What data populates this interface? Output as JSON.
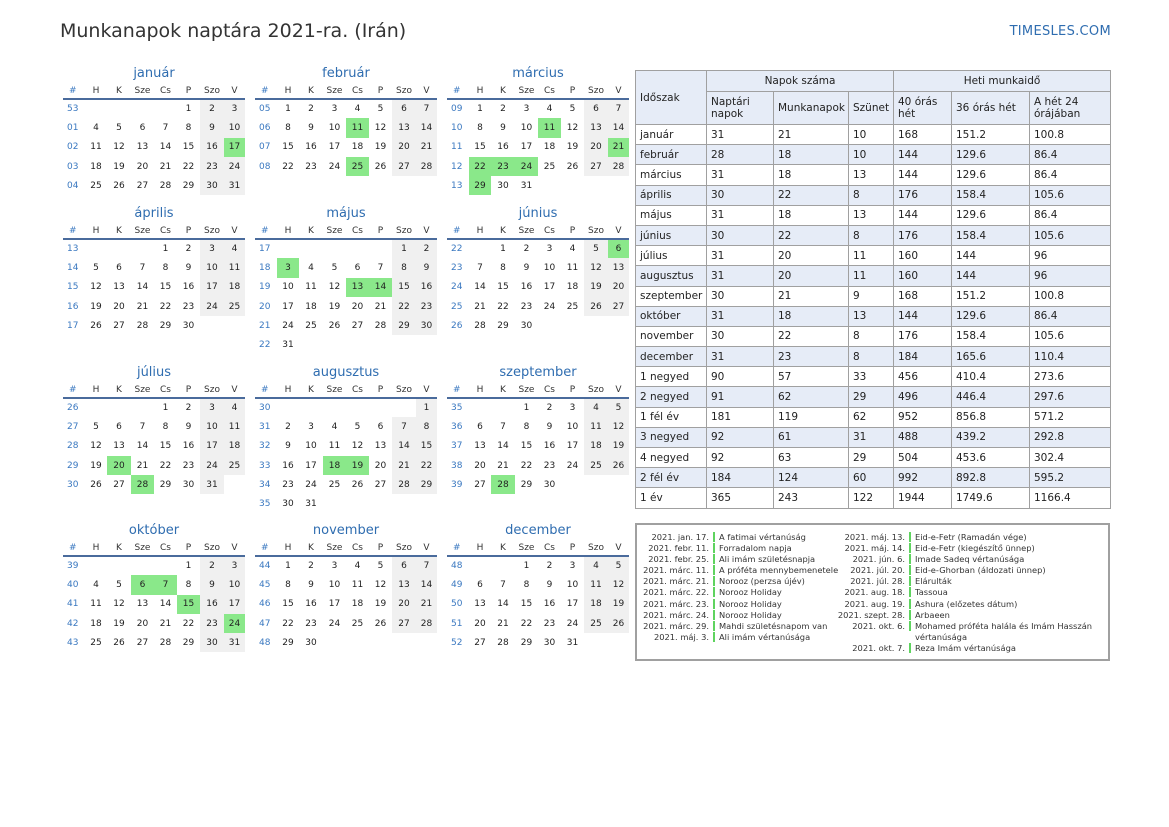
{
  "title": "Munkanapok naptára 2021-ra. (Irán)",
  "brand": "TIMESLES.COM",
  "day_headers": [
    "#",
    "H",
    "K",
    "Sze",
    "Cs",
    "P",
    "Szo",
    "V"
  ],
  "months": [
    {
      "name": "január",
      "weeks": [
        {
          "wk": "53",
          "days": [
            "",
            "",
            "",
            "",
            "1",
            "2",
            "3"
          ]
        },
        {
          "wk": "01",
          "days": [
            "4",
            "5",
            "6",
            "7",
            "8",
            "9",
            "10"
          ]
        },
        {
          "wk": "02",
          "days": [
            "11",
            "12",
            "13",
            "14",
            "15",
            "16",
            "17"
          ]
        },
        {
          "wk": "03",
          "days": [
            "18",
            "19",
            "20",
            "21",
            "22",
            "23",
            "24"
          ]
        },
        {
          "wk": "04",
          "days": [
            "25",
            "26",
            "27",
            "28",
            "29",
            "30",
            "31"
          ]
        }
      ],
      "holidays": [
        "17"
      ]
    },
    {
      "name": "február",
      "weeks": [
        {
          "wk": "05",
          "days": [
            "1",
            "2",
            "3",
            "4",
            "5",
            "6",
            "7"
          ]
        },
        {
          "wk": "06",
          "days": [
            "8",
            "9",
            "10",
            "11",
            "12",
            "13",
            "14"
          ]
        },
        {
          "wk": "07",
          "days": [
            "15",
            "16",
            "17",
            "18",
            "19",
            "20",
            "21"
          ]
        },
        {
          "wk": "08",
          "days": [
            "22",
            "23",
            "24",
            "25",
            "26",
            "27",
            "28"
          ]
        }
      ],
      "holidays": [
        "11",
        "25"
      ]
    },
    {
      "name": "március",
      "weeks": [
        {
          "wk": "09",
          "days": [
            "1",
            "2",
            "3",
            "4",
            "5",
            "6",
            "7"
          ]
        },
        {
          "wk": "10",
          "days": [
            "8",
            "9",
            "10",
            "11",
            "12",
            "13",
            "14"
          ]
        },
        {
          "wk": "11",
          "days": [
            "15",
            "16",
            "17",
            "18",
            "19",
            "20",
            "21"
          ]
        },
        {
          "wk": "12",
          "days": [
            "22",
            "23",
            "24",
            "25",
            "26",
            "27",
            "28"
          ]
        },
        {
          "wk": "13",
          "days": [
            "29",
            "30",
            "31",
            "",
            "",
            "",
            ""
          ]
        }
      ],
      "holidays": [
        "11",
        "21",
        "22",
        "23",
        "24",
        "29"
      ]
    },
    {
      "name": "április",
      "weeks": [
        {
          "wk": "13",
          "days": [
            "",
            "",
            "",
            "1",
            "2",
            "3",
            "4"
          ]
        },
        {
          "wk": "14",
          "days": [
            "5",
            "6",
            "7",
            "8",
            "9",
            "10",
            "11"
          ]
        },
        {
          "wk": "15",
          "days": [
            "12",
            "13",
            "14",
            "15",
            "16",
            "17",
            "18"
          ]
        },
        {
          "wk": "16",
          "days": [
            "19",
            "20",
            "21",
            "22",
            "23",
            "24",
            "25"
          ]
        },
        {
          "wk": "17",
          "days": [
            "26",
            "27",
            "28",
            "29",
            "30",
            "",
            ""
          ]
        }
      ],
      "holidays": []
    },
    {
      "name": "május",
      "weeks": [
        {
          "wk": "17",
          "days": [
            "",
            "",
            "",
            "",
            "",
            "1",
            "2"
          ]
        },
        {
          "wk": "18",
          "days": [
            "3",
            "4",
            "5",
            "6",
            "7",
            "8",
            "9"
          ]
        },
        {
          "wk": "19",
          "days": [
            "10",
            "11",
            "12",
            "13",
            "14",
            "15",
            "16"
          ]
        },
        {
          "wk": "20",
          "days": [
            "17",
            "18",
            "19",
            "20",
            "21",
            "22",
            "23"
          ]
        },
        {
          "wk": "21",
          "days": [
            "24",
            "25",
            "26",
            "27",
            "28",
            "29",
            "30"
          ]
        },
        {
          "wk": "22",
          "days": [
            "31",
            "",
            "",
            "",
            "",
            "",
            ""
          ]
        }
      ],
      "holidays": [
        "3",
        "13",
        "14"
      ]
    },
    {
      "name": "június",
      "weeks": [
        {
          "wk": "22",
          "days": [
            "",
            "1",
            "2",
            "3",
            "4",
            "5",
            "6"
          ]
        },
        {
          "wk": "23",
          "days": [
            "7",
            "8",
            "9",
            "10",
            "11",
            "12",
            "13"
          ]
        },
        {
          "wk": "24",
          "days": [
            "14",
            "15",
            "16",
            "17",
            "18",
            "19",
            "20"
          ]
        },
        {
          "wk": "25",
          "days": [
            "21",
            "22",
            "23",
            "24",
            "25",
            "26",
            "27"
          ]
        },
        {
          "wk": "26",
          "days": [
            "28",
            "29",
            "30",
            "",
            "",
            "",
            ""
          ]
        }
      ],
      "holidays": [
        "6"
      ]
    },
    {
      "name": "július",
      "weeks": [
        {
          "wk": "26",
          "days": [
            "",
            "",
            "",
            "1",
            "2",
            "3",
            "4"
          ]
        },
        {
          "wk": "27",
          "days": [
            "5",
            "6",
            "7",
            "8",
            "9",
            "10",
            "11"
          ]
        },
        {
          "wk": "28",
          "days": [
            "12",
            "13",
            "14",
            "15",
            "16",
            "17",
            "18"
          ]
        },
        {
          "wk": "29",
          "days": [
            "19",
            "20",
            "21",
            "22",
            "23",
            "24",
            "25"
          ]
        },
        {
          "wk": "30",
          "days": [
            "26",
            "27",
            "28",
            "29",
            "30",
            "31",
            ""
          ]
        }
      ],
      "holidays": [
        "20",
        "28"
      ]
    },
    {
      "name": "augusztus",
      "weeks": [
        {
          "wk": "30",
          "days": [
            "",
            "",
            "",
            "",
            "",
            "",
            "1"
          ]
        },
        {
          "wk": "31",
          "days": [
            "2",
            "3",
            "4",
            "5",
            "6",
            "7",
            "8"
          ]
        },
        {
          "wk": "32",
          "days": [
            "9",
            "10",
            "11",
            "12",
            "13",
            "14",
            "15"
          ]
        },
        {
          "wk": "33",
          "days": [
            "16",
            "17",
            "18",
            "19",
            "20",
            "21",
            "22"
          ]
        },
        {
          "wk": "34",
          "days": [
            "23",
            "24",
            "25",
            "26",
            "27",
            "28",
            "29"
          ]
        },
        {
          "wk": "35",
          "days": [
            "30",
            "31",
            "",
            "",
            "",
            "",
            ""
          ]
        }
      ],
      "holidays": [
        "18",
        "19"
      ]
    },
    {
      "name": "szeptember",
      "weeks": [
        {
          "wk": "35",
          "days": [
            "",
            "",
            "1",
            "2",
            "3",
            "4",
            "5"
          ]
        },
        {
          "wk": "36",
          "days": [
            "6",
            "7",
            "8",
            "9",
            "10",
            "11",
            "12"
          ]
        },
        {
          "wk": "37",
          "days": [
            "13",
            "14",
            "15",
            "16",
            "17",
            "18",
            "19"
          ]
        },
        {
          "wk": "38",
          "days": [
            "20",
            "21",
            "22",
            "23",
            "24",
            "25",
            "26"
          ]
        },
        {
          "wk": "39",
          "days": [
            "27",
            "28",
            "29",
            "30",
            "",
            "",
            ""
          ]
        }
      ],
      "holidays": [
        "28"
      ]
    },
    {
      "name": "október",
      "weeks": [
        {
          "wk": "39",
          "days": [
            "",
            "",
            "",
            "",
            "1",
            "2",
            "3"
          ]
        },
        {
          "wk": "40",
          "days": [
            "4",
            "5",
            "6",
            "7",
            "8",
            "9",
            "10"
          ]
        },
        {
          "wk": "41",
          "days": [
            "11",
            "12",
            "13",
            "14",
            "15",
            "16",
            "17"
          ]
        },
        {
          "wk": "42",
          "days": [
            "18",
            "19",
            "20",
            "21",
            "22",
            "23",
            "24"
          ]
        },
        {
          "wk": "43",
          "days": [
            "25",
            "26",
            "27",
            "28",
            "29",
            "30",
            "31"
          ]
        }
      ],
      "holidays": [
        "6",
        "7",
        "15",
        "24"
      ]
    },
    {
      "name": "november",
      "weeks": [
        {
          "wk": "44",
          "days": [
            "1",
            "2",
            "3",
            "4",
            "5",
            "6",
            "7"
          ]
        },
        {
          "wk": "45",
          "days": [
            "8",
            "9",
            "10",
            "11",
            "12",
            "13",
            "14"
          ]
        },
        {
          "wk": "46",
          "days": [
            "15",
            "16",
            "17",
            "18",
            "19",
            "20",
            "21"
          ]
        },
        {
          "wk": "47",
          "days": [
            "22",
            "23",
            "24",
            "25",
            "26",
            "27",
            "28"
          ]
        },
        {
          "wk": "48",
          "days": [
            "29",
            "30",
            "",
            "",
            "",
            "",
            ""
          ]
        }
      ],
      "holidays": []
    },
    {
      "name": "december",
      "weeks": [
        {
          "wk": "48",
          "days": [
            "",
            "",
            "1",
            "2",
            "3",
            "4",
            "5"
          ]
        },
        {
          "wk": "49",
          "days": [
            "6",
            "7",
            "8",
            "9",
            "10",
            "11",
            "12"
          ]
        },
        {
          "wk": "50",
          "days": [
            "13",
            "14",
            "15",
            "16",
            "17",
            "18",
            "19"
          ]
        },
        {
          "wk": "51",
          "days": [
            "20",
            "21",
            "22",
            "23",
            "24",
            "25",
            "26"
          ]
        },
        {
          "wk": "52",
          "days": [
            "27",
            "28",
            "29",
            "30",
            "31",
            "",
            ""
          ]
        }
      ],
      "holidays": []
    }
  ],
  "summary": {
    "headers": {
      "period": "Időszak",
      "days_group": "Napok száma",
      "hours_group": "Heti munkaidő",
      "calendar_days": "Naptári napok",
      "workdays": "Munkanapok",
      "holidays": "Szünet",
      "h40": "40 órás hét",
      "h36": "36 órás hét",
      "h24": "A hét 24 órájában"
    },
    "rows": [
      [
        "január",
        "31",
        "21",
        "10",
        "168",
        "151.2",
        "100.8"
      ],
      [
        "február",
        "28",
        "18",
        "10",
        "144",
        "129.6",
        "86.4"
      ],
      [
        "március",
        "31",
        "18",
        "13",
        "144",
        "129.6",
        "86.4"
      ],
      [
        "április",
        "30",
        "22",
        "8",
        "176",
        "158.4",
        "105.6"
      ],
      [
        "május",
        "31",
        "18",
        "13",
        "144",
        "129.6",
        "86.4"
      ],
      [
        "június",
        "30",
        "22",
        "8",
        "176",
        "158.4",
        "105.6"
      ],
      [
        "július",
        "31",
        "20",
        "11",
        "160",
        "144",
        "96"
      ],
      [
        "augusztus",
        "31",
        "20",
        "11",
        "160",
        "144",
        "96"
      ],
      [
        "szeptember",
        "30",
        "21",
        "9",
        "168",
        "151.2",
        "100.8"
      ],
      [
        "október",
        "31",
        "18",
        "13",
        "144",
        "129.6",
        "86.4"
      ],
      [
        "november",
        "30",
        "22",
        "8",
        "176",
        "158.4",
        "105.6"
      ],
      [
        "december",
        "31",
        "23",
        "8",
        "184",
        "165.6",
        "110.4"
      ],
      [
        "1 negyed",
        "90",
        "57",
        "33",
        "456",
        "410.4",
        "273.6"
      ],
      [
        "2 negyed",
        "91",
        "62",
        "29",
        "496",
        "446.4",
        "297.6"
      ],
      [
        "1 fél év",
        "181",
        "119",
        "62",
        "952",
        "856.8",
        "571.2"
      ],
      [
        "3 negyed",
        "92",
        "61",
        "31",
        "488",
        "439.2",
        "292.8"
      ],
      [
        "4 negyed",
        "92",
        "63",
        "29",
        "504",
        "453.6",
        "302.4"
      ],
      [
        "2 fél év",
        "184",
        "124",
        "60",
        "992",
        "892.8",
        "595.2"
      ],
      [
        "1 év",
        "365",
        "243",
        "122",
        "1944",
        "1749.6",
        "1166.4"
      ]
    ]
  },
  "holiday_list": {
    "left": [
      {
        "date": "2021. jan. 17.",
        "name": "A fatimai vértanúság"
      },
      {
        "date": "2021. febr. 11.",
        "name": "Forradalom napja"
      },
      {
        "date": "2021. febr. 25.",
        "name": "Ali imám születésnapja"
      },
      {
        "date": "2021. márc. 11.",
        "name": "A próféta mennybemenetele"
      },
      {
        "date": "2021. márc. 21.",
        "name": "Norooz (perzsa újév)"
      },
      {
        "date": "2021. márc. 22.",
        "name": "Norooz Holiday"
      },
      {
        "date": "2021. márc. 23.",
        "name": "Norooz Holiday"
      },
      {
        "date": "2021. márc. 24.",
        "name": "Norooz Holiday"
      },
      {
        "date": "2021. márc. 29.",
        "name": "Mahdi születésnapom van"
      },
      {
        "date": "2021. máj. 3.",
        "name": "Ali imám vértanúsága"
      }
    ],
    "right": [
      {
        "date": "2021. máj. 13.",
        "name": "Eid-e-Fetr (Ramadán vége)"
      },
      {
        "date": "2021. máj. 14.",
        "name": "Eid-e-Fetr (kiegészítő ünnep)"
      },
      {
        "date": "2021. jún. 6.",
        "name": "Imade Sadeq vértanúsága"
      },
      {
        "date": "2021. júl. 20.",
        "name": "Eid-e-Ghorban (áldozati ünnep)"
      },
      {
        "date": "2021. júl. 28.",
        "name": "Elárulták"
      },
      {
        "date": "2021. aug. 18.",
        "name": "Tassoua"
      },
      {
        "date": "2021. aug. 19.",
        "name": "Ashura (előzetes dátum)"
      },
      {
        "date": "2021. szept. 28.",
        "name": "Arbaeen"
      },
      {
        "date": "2021. okt. 6.",
        "name": "Mohamed próféta halála és Imám Hasszán vértanúsága"
      },
      {
        "date": "2021. okt. 7.",
        "name": "Reza Imám vértanúsága"
      }
    ]
  },
  "colors": {
    "accent": "#2f6db0",
    "week_number": "#3a78c0",
    "holiday": "#8ae88a",
    "weekend": "#f0f0f0",
    "table_alt_row": "#e6ecf7",
    "rule": "#4a6b9c"
  }
}
